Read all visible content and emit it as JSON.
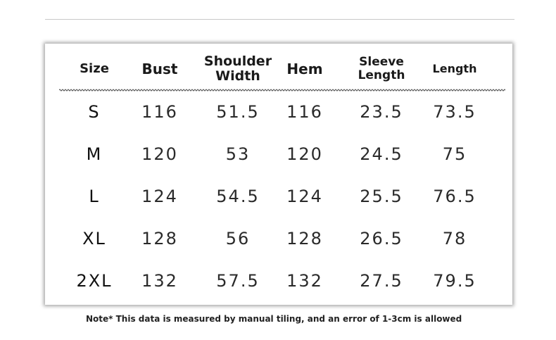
{
  "table": {
    "headers": [
      "Size",
      "Bust",
      "Shoulder Width",
      "Hem",
      "Sleeve Length",
      "Length"
    ],
    "header_lines": [
      [
        "Size"
      ],
      [
        "Bust"
      ],
      [
        "Shoulder",
        "Width"
      ],
      [
        "Hem"
      ],
      [
        "Sleeve",
        "Length"
      ],
      [
        "Length"
      ]
    ],
    "rows": [
      [
        "S",
        "116",
        "51.5",
        "116",
        "23.5",
        "73.5"
      ],
      [
        "M",
        "120",
        "53",
        "120",
        "24.5",
        "75"
      ],
      [
        "L",
        "124",
        "54.5",
        "124",
        "25.5",
        "76.5"
      ],
      [
        "XL",
        "128",
        "56",
        "128",
        "26.5",
        "78"
      ],
      [
        "2XL",
        "132",
        "57.5",
        "132",
        "27.5",
        "79.5"
      ]
    ]
  },
  "note": "Note* This data is measured by manual tiling, and an error of 1-3cm is allowed"
}
